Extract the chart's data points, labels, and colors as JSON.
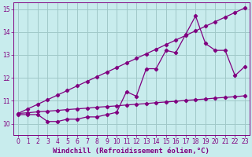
{
  "xlabel": "Windchill (Refroidissement éolien,°C)",
  "ylabel": "",
  "bg_color": "#c8eced",
  "line_color": "#800080",
  "grid_color": "#a0c8c8",
  "xlim": [
    -0.5,
    23.5
  ],
  "ylim": [
    9.5,
    15.3
  ],
  "xticks": [
    0,
    1,
    2,
    3,
    4,
    5,
    6,
    7,
    8,
    9,
    10,
    11,
    12,
    13,
    14,
    15,
    16,
    17,
    18,
    19,
    20,
    21,
    22,
    23
  ],
  "yticks": [
    10,
    11,
    12,
    13,
    14,
    15
  ],
  "line1_x": [
    0,
    1,
    2,
    3,
    4,
    5,
    6,
    7,
    8,
    9,
    10,
    11,
    12,
    13,
    14,
    15,
    16,
    17,
    18,
    19,
    20,
    21,
    22,
    23
  ],
  "line1_y": [
    10.45,
    10.48,
    10.52,
    10.55,
    10.58,
    10.62,
    10.65,
    10.68,
    10.72,
    10.75,
    10.78,
    10.82,
    10.85,
    10.88,
    10.92,
    10.95,
    10.98,
    11.02,
    11.05,
    11.08,
    11.12,
    11.15,
    11.18,
    11.22
  ],
  "line2_x": [
    0,
    1,
    2,
    3,
    4,
    5,
    6,
    7,
    8,
    9,
    10,
    11,
    12,
    13,
    14,
    15,
    16,
    17,
    18,
    19,
    20,
    21,
    22,
    23
  ],
  "line2_y": [
    10.45,
    10.65,
    10.85,
    11.05,
    11.25,
    11.45,
    11.65,
    11.85,
    12.05,
    12.25,
    12.45,
    12.65,
    12.85,
    13.05,
    13.25,
    13.45,
    13.65,
    13.85,
    14.05,
    14.25,
    14.45,
    14.65,
    14.85,
    15.05
  ],
  "line3_x": [
    0,
    1,
    2,
    3,
    4,
    5,
    6,
    7,
    8,
    9,
    10,
    11,
    12,
    13,
    14,
    15,
    16,
    17,
    18,
    19,
    20,
    21,
    22,
    23
  ],
  "line3_y": [
    10.4,
    10.4,
    10.4,
    10.1,
    10.1,
    10.2,
    10.2,
    10.3,
    10.3,
    10.4,
    10.5,
    11.4,
    11.2,
    12.4,
    12.4,
    13.2,
    13.1,
    13.9,
    14.7,
    13.5,
    13.2,
    13.2,
    12.1,
    12.5
  ],
  "font_color": "#800080",
  "tick_fontsize": 5.5,
  "label_fontsize": 6.5
}
